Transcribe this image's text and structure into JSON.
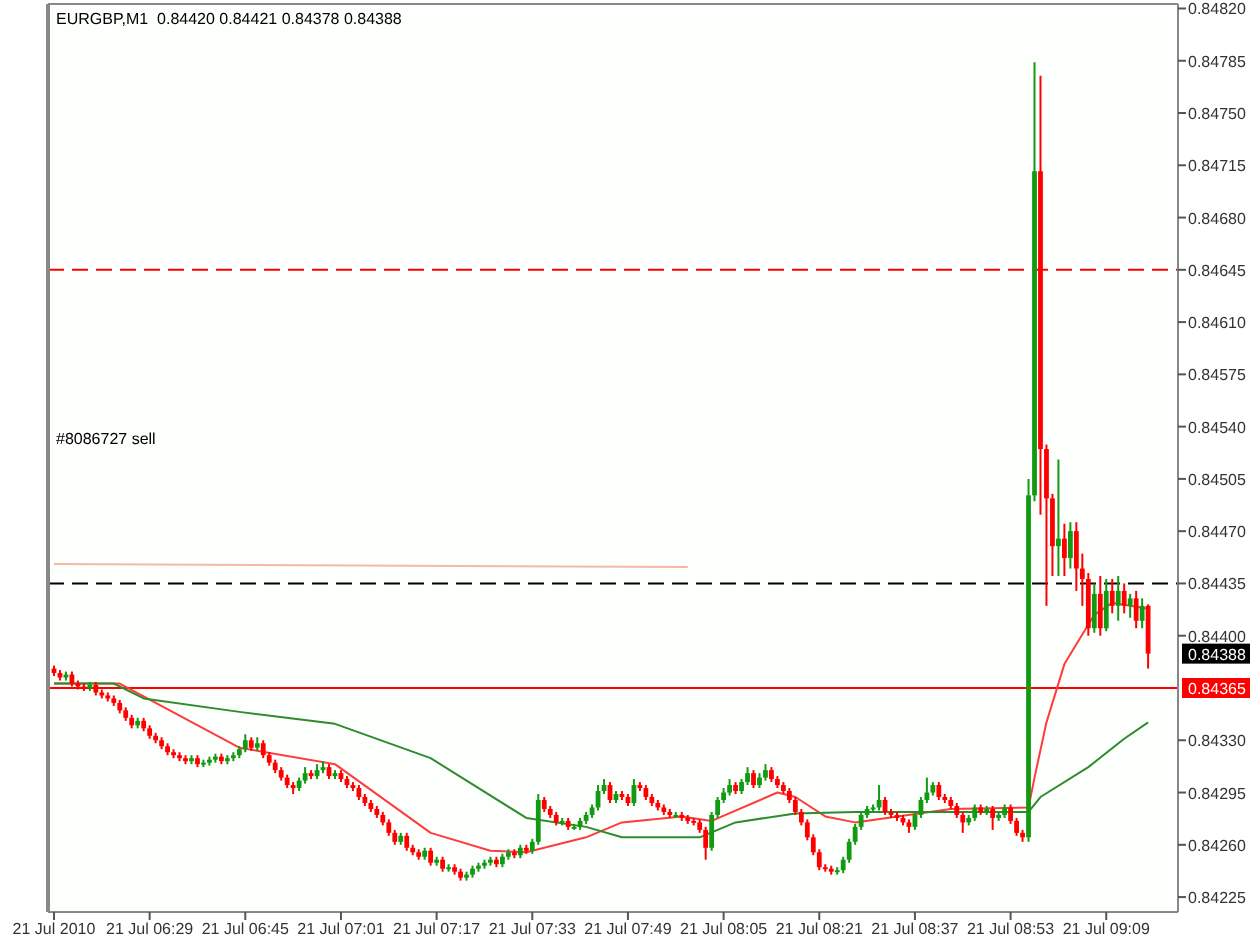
{
  "chart_data": {
    "type": "candlestick",
    "title": "EURGBP,M1  0.84420 0.84421 0.84378 0.84388",
    "x": [
      "2010-07-21T06:13",
      "2010-07-21T06:14",
      "2010-07-21T06:15",
      "2010-07-21T06:16",
      "2010-07-21T06:17",
      "2010-07-21T06:18",
      "2010-07-21T06:19",
      "2010-07-21T06:20",
      "2010-07-21T06:21",
      "2010-07-21T06:22",
      "2010-07-21T06:23",
      "2010-07-21T06:24",
      "2010-07-21T06:25",
      "2010-07-21T06:26",
      "2010-07-21T06:27",
      "2010-07-21T06:28",
      "2010-07-21T06:29",
      "2010-07-21T06:30",
      "2010-07-21T06:31",
      "2010-07-21T06:32",
      "2010-07-21T06:33",
      "2010-07-21T06:34",
      "2010-07-21T06:35",
      "2010-07-21T06:36",
      "2010-07-21T06:37",
      "2010-07-21T06:38",
      "2010-07-21T06:39",
      "2010-07-21T06:40",
      "2010-07-21T06:41",
      "2010-07-21T06:42",
      "2010-07-21T06:43",
      "2010-07-21T06:44",
      "2010-07-21T06:45",
      "2010-07-21T06:46",
      "2010-07-21T06:47",
      "2010-07-21T06:48",
      "2010-07-21T06:49",
      "2010-07-21T06:50",
      "2010-07-21T06:51",
      "2010-07-21T06:52",
      "2010-07-21T06:53",
      "2010-07-21T06:54",
      "2010-07-21T06:55",
      "2010-07-21T06:56",
      "2010-07-21T06:57",
      "2010-07-21T06:58",
      "2010-07-21T06:59",
      "2010-07-21T07:00",
      "2010-07-21T07:01",
      "2010-07-21T07:02",
      "2010-07-21T07:03",
      "2010-07-21T07:04",
      "2010-07-21T07:05",
      "2010-07-21T07:06",
      "2010-07-21T07:07",
      "2010-07-21T07:08",
      "2010-07-21T07:09",
      "2010-07-21T07:10",
      "2010-07-21T07:11",
      "2010-07-21T07:12",
      "2010-07-21T07:13",
      "2010-07-21T07:14",
      "2010-07-21T07:15",
      "2010-07-21T07:16",
      "2010-07-21T07:17",
      "2010-07-21T07:18",
      "2010-07-21T07:19",
      "2010-07-21T07:20",
      "2010-07-21T07:21",
      "2010-07-21T07:22",
      "2010-07-21T07:23",
      "2010-07-21T07:24",
      "2010-07-21T07:25",
      "2010-07-21T07:26",
      "2010-07-21T07:27",
      "2010-07-21T07:28",
      "2010-07-21T07:29",
      "2010-07-21T07:30",
      "2010-07-21T07:31",
      "2010-07-21T07:32",
      "2010-07-21T07:33",
      "2010-07-21T07:34",
      "2010-07-21T07:35",
      "2010-07-21T07:36",
      "2010-07-21T07:37",
      "2010-07-21T07:38",
      "2010-07-21T07:39",
      "2010-07-21T07:40",
      "2010-07-21T07:41",
      "2010-07-21T07:42",
      "2010-07-21T07:43",
      "2010-07-21T07:44",
      "2010-07-21T07:45",
      "2010-07-21T07:46",
      "2010-07-21T07:47",
      "2010-07-21T07:48",
      "2010-07-21T07:49",
      "2010-07-21T07:50",
      "2010-07-21T07:51",
      "2010-07-21T07:52",
      "2010-07-21T07:53",
      "2010-07-21T07:54",
      "2010-07-21T07:55",
      "2010-07-21T07:56",
      "2010-07-21T07:57",
      "2010-07-21T07:58",
      "2010-07-21T07:59",
      "2010-07-21T08:00",
      "2010-07-21T08:01",
      "2010-07-21T08:02",
      "2010-07-21T08:03",
      "2010-07-21T08:04",
      "2010-07-21T08:05",
      "2010-07-21T08:06",
      "2010-07-21T08:07",
      "2010-07-21T08:08",
      "2010-07-21T08:09",
      "2010-07-21T08:10",
      "2010-07-21T08:11",
      "2010-07-21T08:12",
      "2010-07-21T08:13",
      "2010-07-21T08:14",
      "2010-07-21T08:15",
      "2010-07-21T08:16",
      "2010-07-21T08:17",
      "2010-07-21T08:18",
      "2010-07-21T08:19",
      "2010-07-21T08:20",
      "2010-07-21T08:21",
      "2010-07-21T08:22",
      "2010-07-21T08:23",
      "2010-07-21T08:24",
      "2010-07-21T08:25",
      "2010-07-21T08:26",
      "2010-07-21T08:27",
      "2010-07-21T08:28",
      "2010-07-21T08:29",
      "2010-07-21T08:30",
      "2010-07-21T08:31",
      "2010-07-21T08:32",
      "2010-07-21T08:33",
      "2010-07-21T08:34",
      "2010-07-21T08:35",
      "2010-07-21T08:36",
      "2010-07-21T08:37",
      "2010-07-21T08:38",
      "2010-07-21T08:39",
      "2010-07-21T08:40",
      "2010-07-21T08:41",
      "2010-07-21T08:42",
      "2010-07-21T08:43",
      "2010-07-21T08:44",
      "2010-07-21T08:45",
      "2010-07-21T08:46",
      "2010-07-21T08:47",
      "2010-07-21T08:48",
      "2010-07-21T08:49",
      "2010-07-21T08:50",
      "2010-07-21T08:51",
      "2010-07-21T08:52",
      "2010-07-21T08:53",
      "2010-07-21T08:54",
      "2010-07-21T08:55",
      "2010-07-21T08:56",
      "2010-07-21T08:57",
      "2010-07-21T08:58",
      "2010-07-21T08:59",
      "2010-07-21T09:00",
      "2010-07-21T09:01",
      "2010-07-21T09:02",
      "2010-07-21T09:03",
      "2010-07-21T09:04",
      "2010-07-21T09:05",
      "2010-07-21T09:06",
      "2010-07-21T09:07",
      "2010-07-21T09:08",
      "2010-07-21T09:09",
      "2010-07-21T09:10",
      "2010-07-21T09:11",
      "2010-07-21T09:12",
      "2010-07-21T09:13",
      "2010-07-21T09:14",
      "2010-07-21T09:15",
      "2010-07-21T09:16"
    ],
    "ohlc": [
      [
        0.84378,
        0.8438,
        0.84373,
        0.84375
      ],
      [
        0.84375,
        0.84377,
        0.8437,
        0.84372
      ],
      [
        0.84372,
        0.84376,
        0.8437,
        0.84374
      ],
      [
        0.84374,
        0.84376,
        0.84366,
        0.84368
      ],
      [
        0.84368,
        0.8437,
        0.84364,
        0.84366
      ],
      [
        0.84366,
        0.84368,
        0.84363,
        0.84365
      ],
      [
        0.84365,
        0.84369,
        0.84363,
        0.84367
      ],
      [
        0.84367,
        0.84369,
        0.8436,
        0.84362
      ],
      [
        0.84362,
        0.84364,
        0.84358,
        0.8436
      ],
      [
        0.8436,
        0.84362,
        0.84356,
        0.84358
      ],
      [
        0.84358,
        0.8436,
        0.84353,
        0.84355
      ],
      [
        0.84355,
        0.84357,
        0.84348,
        0.8435
      ],
      [
        0.8435,
        0.84352,
        0.84343,
        0.84345
      ],
      [
        0.84345,
        0.84347,
        0.84338,
        0.8434
      ],
      [
        0.8434,
        0.84345,
        0.84338,
        0.84343
      ],
      [
        0.84343,
        0.84345,
        0.84336,
        0.84338
      ],
      [
        0.84338,
        0.8434,
        0.84331,
        0.84333
      ],
      [
        0.84333,
        0.84335,
        0.84328,
        0.8433
      ],
      [
        0.8433,
        0.84332,
        0.84324,
        0.84326
      ],
      [
        0.84326,
        0.84328,
        0.8432,
        0.84322
      ],
      [
        0.84322,
        0.84324,
        0.84318,
        0.8432
      ],
      [
        0.8432,
        0.84322,
        0.84316,
        0.84318
      ],
      [
        0.84318,
        0.8432,
        0.84314,
        0.84316
      ],
      [
        0.84316,
        0.8432,
        0.84314,
        0.84318
      ],
      [
        0.84318,
        0.8432,
        0.84312,
        0.84314
      ],
      [
        0.84314,
        0.84317,
        0.84312,
        0.84315
      ],
      [
        0.84315,
        0.84319,
        0.84313,
        0.84317
      ],
      [
        0.84317,
        0.84321,
        0.84315,
        0.84319
      ],
      [
        0.84319,
        0.84321,
        0.84314,
        0.84316
      ],
      [
        0.84316,
        0.8432,
        0.84314,
        0.84318
      ],
      [
        0.84318,
        0.84322,
        0.84316,
        0.8432
      ],
      [
        0.8432,
        0.84326,
        0.84318,
        0.84324
      ],
      [
        0.84324,
        0.84334,
        0.84322,
        0.8433
      ],
      [
        0.8433,
        0.84332,
        0.84323,
        0.84325
      ],
      [
        0.84325,
        0.84332,
        0.84323,
        0.84328
      ],
      [
        0.84328,
        0.8433,
        0.84318,
        0.8432
      ],
      [
        0.8432,
        0.84322,
        0.84313,
        0.84315
      ],
      [
        0.84315,
        0.84317,
        0.84308,
        0.8431
      ],
      [
        0.8431,
        0.84312,
        0.84303,
        0.84305
      ],
      [
        0.84305,
        0.84307,
        0.84298,
        0.843
      ],
      [
        0.843,
        0.84302,
        0.84294,
        0.84298
      ],
      [
        0.84298,
        0.84305,
        0.84296,
        0.84303
      ],
      [
        0.84303,
        0.84312,
        0.84301,
        0.84308
      ],
      [
        0.84308,
        0.8431,
        0.84304,
        0.84306
      ],
      [
        0.84306,
        0.84314,
        0.84304,
        0.8431
      ],
      [
        0.8431,
        0.84316,
        0.84308,
        0.84312
      ],
      [
        0.84312,
        0.84314,
        0.84304,
        0.84306
      ],
      [
        0.84306,
        0.8431,
        0.84304,
        0.84308
      ],
      [
        0.84308,
        0.8431,
        0.84302,
        0.84304
      ],
      [
        0.84304,
        0.84306,
        0.84298,
        0.843
      ],
      [
        0.843,
        0.84302,
        0.84296,
        0.84298
      ],
      [
        0.84298,
        0.843,
        0.8429,
        0.84292
      ],
      [
        0.84292,
        0.84294,
        0.84286,
        0.84288
      ],
      [
        0.84288,
        0.8429,
        0.84282,
        0.84284
      ],
      [
        0.84284,
        0.84286,
        0.84278,
        0.8428
      ],
      [
        0.8428,
        0.84282,
        0.84273,
        0.84275
      ],
      [
        0.84275,
        0.84277,
        0.84266,
        0.84268
      ],
      [
        0.84268,
        0.8427,
        0.8426,
        0.84262
      ],
      [
        0.84262,
        0.84268,
        0.8426,
        0.84266
      ],
      [
        0.84266,
        0.84268,
        0.84256,
        0.84258
      ],
      [
        0.84258,
        0.8426,
        0.84253,
        0.84255
      ],
      [
        0.84255,
        0.84257,
        0.8425,
        0.84252
      ],
      [
        0.84252,
        0.84258,
        0.8425,
        0.84256
      ],
      [
        0.84256,
        0.84258,
        0.84246,
        0.84248
      ],
      [
        0.84248,
        0.84252,
        0.84246,
        0.8425
      ],
      [
        0.8425,
        0.84252,
        0.84242,
        0.84244
      ],
      [
        0.84244,
        0.84247,
        0.84242,
        0.84245
      ],
      [
        0.84245,
        0.84247,
        0.8424,
        0.84242
      ],
      [
        0.84242,
        0.84244,
        0.84236,
        0.84238
      ],
      [
        0.84238,
        0.84242,
        0.84236,
        0.8424
      ],
      [
        0.8424,
        0.84246,
        0.84238,
        0.84244
      ],
      [
        0.84244,
        0.84248,
        0.84242,
        0.84246
      ],
      [
        0.84246,
        0.8425,
        0.84244,
        0.84248
      ],
      [
        0.84248,
        0.84252,
        0.84246,
        0.8425
      ],
      [
        0.8425,
        0.84252,
        0.84245,
        0.84247
      ],
      [
        0.84247,
        0.84254,
        0.84245,
        0.84252
      ],
      [
        0.84252,
        0.84257,
        0.8425,
        0.84255
      ],
      [
        0.84255,
        0.84257,
        0.84251,
        0.84253
      ],
      [
        0.84253,
        0.8426,
        0.84251,
        0.84258
      ],
      [
        0.84258,
        0.8426,
        0.84254,
        0.84256
      ],
      [
        0.84256,
        0.84264,
        0.84254,
        0.84262
      ],
      [
        0.84262,
        0.84294,
        0.8426,
        0.8429
      ],
      [
        0.8429,
        0.84292,
        0.84282,
        0.84284
      ],
      [
        0.84284,
        0.84286,
        0.84278,
        0.8428
      ],
      [
        0.8428,
        0.84282,
        0.84273,
        0.84275
      ],
      [
        0.84275,
        0.84278,
        0.84273,
        0.84276
      ],
      [
        0.84276,
        0.84278,
        0.8427,
        0.84272
      ],
      [
        0.84272,
        0.84274,
        0.8427,
        0.84272
      ],
      [
        0.84272,
        0.84278,
        0.8427,
        0.84276
      ],
      [
        0.84276,
        0.84282,
        0.84274,
        0.8428
      ],
      [
        0.8428,
        0.84287,
        0.84278,
        0.84285
      ],
      [
        0.84285,
        0.843,
        0.84283,
        0.84296
      ],
      [
        0.84296,
        0.84304,
        0.84294,
        0.843
      ],
      [
        0.843,
        0.84302,
        0.84288,
        0.8429
      ],
      [
        0.8429,
        0.84296,
        0.84288,
        0.84294
      ],
      [
        0.84294,
        0.84296,
        0.8429,
        0.84292
      ],
      [
        0.84292,
        0.84294,
        0.84286,
        0.84288
      ],
      [
        0.84288,
        0.84304,
        0.84286,
        0.843
      ],
      [
        0.843,
        0.84302,
        0.84296,
        0.84298
      ],
      [
        0.84298,
        0.843,
        0.8429,
        0.84292
      ],
      [
        0.84292,
        0.84294,
        0.84286,
        0.84288
      ],
      [
        0.84288,
        0.8429,
        0.84283,
        0.84285
      ],
      [
        0.84285,
        0.84287,
        0.8428,
        0.84282
      ],
      [
        0.84282,
        0.84284,
        0.84278,
        0.8428
      ],
      [
        0.8428,
        0.84282,
        0.84278,
        0.8428
      ],
      [
        0.8428,
        0.84282,
        0.84276,
        0.84278
      ],
      [
        0.84278,
        0.8428,
        0.84274,
        0.84276
      ],
      [
        0.84276,
        0.84278,
        0.84273,
        0.84275
      ],
      [
        0.84275,
        0.84277,
        0.84268,
        0.8427
      ],
      [
        0.8427,
        0.84272,
        0.8425,
        0.84258
      ],
      [
        0.84258,
        0.84282,
        0.84256,
        0.8428
      ],
      [
        0.8428,
        0.84292,
        0.84278,
        0.8429
      ],
      [
        0.8429,
        0.84298,
        0.84288,
        0.84295
      ],
      [
        0.84295,
        0.84304,
        0.84293,
        0.843
      ],
      [
        0.843,
        0.84302,
        0.84294,
        0.84296
      ],
      [
        0.84296,
        0.84304,
        0.84294,
        0.84302
      ],
      [
        0.84302,
        0.84312,
        0.843,
        0.84308
      ],
      [
        0.84308,
        0.8431,
        0.84298,
        0.843
      ],
      [
        0.843,
        0.84308,
        0.84298,
        0.84305
      ],
      [
        0.84305,
        0.84314,
        0.84303,
        0.8431
      ],
      [
        0.8431,
        0.84312,
        0.84302,
        0.84304
      ],
      [
        0.84304,
        0.84306,
        0.84298,
        0.843
      ],
      [
        0.843,
        0.84302,
        0.84294,
        0.84296
      ],
      [
        0.84296,
        0.84298,
        0.84288,
        0.8429
      ],
      [
        0.8429,
        0.84292,
        0.8428,
        0.84282
      ],
      [
        0.84282,
        0.84284,
        0.84273,
        0.84275
      ],
      [
        0.84275,
        0.84277,
        0.84263,
        0.84265
      ],
      [
        0.84265,
        0.84267,
        0.84253,
        0.84255
      ],
      [
        0.84255,
        0.84257,
        0.84243,
        0.84245
      ],
      [
        0.84245,
        0.84247,
        0.84242,
        0.84244
      ],
      [
        0.84244,
        0.84246,
        0.8424,
        0.84242
      ],
      [
        0.84242,
        0.84245,
        0.8424,
        0.84243
      ],
      [
        0.84243,
        0.84252,
        0.84241,
        0.8425
      ],
      [
        0.8425,
        0.84264,
        0.84248,
        0.84262
      ],
      [
        0.84262,
        0.84274,
        0.8426,
        0.84272
      ],
      [
        0.84272,
        0.84282,
        0.8427,
        0.8428
      ],
      [
        0.8428,
        0.84286,
        0.84278,
        0.84284
      ],
      [
        0.84284,
        0.84287,
        0.84282,
        0.84285
      ],
      [
        0.84285,
        0.843,
        0.84283,
        0.8429
      ],
      [
        0.8429,
        0.84292,
        0.8428,
        0.84282
      ],
      [
        0.84282,
        0.84284,
        0.84278,
        0.8428
      ],
      [
        0.8428,
        0.84282,
        0.84276,
        0.84278
      ],
      [
        0.84278,
        0.8428,
        0.84273,
        0.84275
      ],
      [
        0.84275,
        0.84277,
        0.84268,
        0.84272
      ],
      [
        0.84272,
        0.84282,
        0.8427,
        0.8428
      ],
      [
        0.8428,
        0.84292,
        0.84278,
        0.8429
      ],
      [
        0.8429,
        0.84305,
        0.84288,
        0.84295
      ],
      [
        0.84295,
        0.84302,
        0.84293,
        0.843
      ],
      [
        0.843,
        0.84302,
        0.8429,
        0.84292
      ],
      [
        0.84292,
        0.84294,
        0.84288,
        0.8429
      ],
      [
        0.8429,
        0.84292,
        0.84284,
        0.84286
      ],
      [
        0.84286,
        0.84288,
        0.84278,
        0.8428
      ],
      [
        0.8428,
        0.84282,
        0.84268,
        0.84275
      ],
      [
        0.84275,
        0.8428,
        0.84273,
        0.84278
      ],
      [
        0.84278,
        0.84287,
        0.84276,
        0.84285
      ],
      [
        0.84285,
        0.84287,
        0.8428,
        0.84282
      ],
      [
        0.84282,
        0.84286,
        0.8428,
        0.84284
      ],
      [
        0.84284,
        0.84286,
        0.8427,
        0.84278
      ],
      [
        0.84278,
        0.84282,
        0.84276,
        0.8428
      ],
      [
        0.8428,
        0.84287,
        0.84278,
        0.84285
      ],
      [
        0.84285,
        0.84287,
        0.84274,
        0.84276
      ],
      [
        0.84276,
        0.84278,
        0.84266,
        0.84268
      ],
      [
        0.84268,
        0.8427,
        0.84262,
        0.84265
      ],
      [
        0.84265,
        0.84505,
        0.84262,
        0.84494
      ],
      [
        0.84494,
        0.84784,
        0.8449,
        0.84711
      ],
      [
        0.84711,
        0.84775,
        0.84481,
        0.84525
      ],
      [
        0.84525,
        0.84528,
        0.8442,
        0.84492
      ],
      [
        0.84492,
        0.84495,
        0.8444,
        0.8446
      ],
      [
        0.8446,
        0.84518,
        0.8444,
        0.84465
      ],
      [
        0.84465,
        0.84475,
        0.8444,
        0.84452
      ],
      [
        0.84452,
        0.84476,
        0.84445,
        0.8447
      ],
      [
        0.8447,
        0.84476,
        0.8443,
        0.84445
      ],
      [
        0.84445,
        0.84455,
        0.8442,
        0.84438
      ],
      [
        0.84438,
        0.84442,
        0.844,
        0.84405
      ],
      [
        0.84405,
        0.84435,
        0.84402,
        0.84428
      ],
      [
        0.84428,
        0.8444,
        0.844,
        0.84405
      ],
      [
        0.84405,
        0.84438,
        0.84403,
        0.8443
      ],
      [
        0.8443,
        0.84438,
        0.84415,
        0.8442
      ],
      [
        0.8442,
        0.8444,
        0.8441,
        0.8443
      ],
      [
        0.8443,
        0.84435,
        0.84415,
        0.8442
      ],
      [
        0.8442,
        0.84428,
        0.84412,
        0.84425
      ],
      [
        0.84425,
        0.8443,
        0.84405,
        0.8441
      ],
      [
        0.8441,
        0.84425,
        0.84405,
        0.8442
      ],
      [
        0.8442,
        0.84421,
        0.84378,
        0.84388
      ]
    ],
    "series": [
      {
        "type": "line",
        "color": "#ff3b3b",
        "x": [
          "2010-07-21T06:13",
          "2010-07-21T06:24",
          "2010-07-21T06:44",
          "2010-07-21T07:00",
          "2010-07-21T07:16",
          "2010-07-21T07:26",
          "2010-07-21T07:32",
          "2010-07-21T07:42",
          "2010-07-21T07:48",
          "2010-07-21T07:58",
          "2010-07-21T08:03",
          "2010-07-21T08:14",
          "2010-07-21T08:17",
          "2010-07-21T08:22",
          "2010-07-21T08:27",
          "2010-07-21T08:43",
          "2010-07-21T08:56",
          "2010-07-21T08:57",
          "2010-07-21T08:59",
          "2010-07-21T09:02",
          "2010-07-21T09:07",
          "2010-07-21T09:10",
          "2010-07-21T09:16"
        ],
        "values": [
          0.84368,
          0.84368,
          0.84325,
          0.84314,
          0.84268,
          0.84256,
          0.84255,
          0.84265,
          0.84275,
          0.84279,
          0.84276,
          0.84295,
          0.84292,
          0.84279,
          0.84275,
          0.84284,
          0.84285,
          0.84305,
          0.84342,
          0.84381,
          0.84414,
          0.84422,
          0.84418
        ]
      },
      {
        "type": "line",
        "color": "#2e8b2e",
        "x": [
          "2010-07-21T06:13",
          "2010-07-21T06:23",
          "2010-07-21T06:28",
          "2010-07-21T06:44",
          "2010-07-21T07:00",
          "2010-07-21T07:16",
          "2010-07-21T07:32",
          "2010-07-21T07:42",
          "2010-07-21T07:48",
          "2010-07-21T08:01",
          "2010-07-21T08:07",
          "2010-07-21T08:17",
          "2010-07-21T08:27",
          "2010-07-21T08:56",
          "2010-07-21T08:58",
          "2010-07-21T09:06",
          "2010-07-21T09:12",
          "2010-07-21T09:16"
        ],
        "values": [
          0.84368,
          0.84368,
          0.84358,
          0.84349,
          0.84341,
          0.84318,
          0.84278,
          0.84272,
          0.84265,
          0.84265,
          0.84275,
          0.84281,
          0.84282,
          0.84282,
          0.84292,
          0.84312,
          0.84331,
          0.84342
        ]
      },
      {
        "type": "line",
        "color": "#f6b8a2",
        "x": [
          "2010-07-21T06:13",
          "2010-07-21T07:59"
        ],
        "values": [
          0.84448,
          0.84446
        ]
      }
    ],
    "xlim": [
      "2010-07-21T06:12",
      "2010-07-21T09:21"
    ],
    "xticks": [
      {
        "value": "2010-07-21T06:13",
        "label": "21 Jul 2010"
      },
      {
        "value": "2010-07-21T06:29",
        "label": "21 Jul 06:29"
      },
      {
        "value": "2010-07-21T06:45",
        "label": "21 Jul 06:45"
      },
      {
        "value": "2010-07-21T07:01",
        "label": "21 Jul 07:01"
      },
      {
        "value": "2010-07-21T07:17",
        "label": "21 Jul 07:17"
      },
      {
        "value": "2010-07-21T07:33",
        "label": "21 Jul 07:33"
      },
      {
        "value": "2010-07-21T07:49",
        "label": "21 Jul 07:49"
      },
      {
        "value": "2010-07-21T08:05",
        "label": "21 Jul 08:05"
      },
      {
        "value": "2010-07-21T08:21",
        "label": "21 Jul 08:21"
      },
      {
        "value": "2010-07-21T08:37",
        "label": "21 Jul 08:37"
      },
      {
        "value": "2010-07-21T08:53",
        "label": "21 Jul 08:53"
      },
      {
        "value": "2010-07-21T09:09",
        "label": "21 Jul 09:09"
      }
    ],
    "ylim": [
      0.84215,
      0.84823
    ],
    "yticks": [
      0.84225,
      {
        "value": 0.8426,
        "label": "0.84260"
      },
      0.84295,
      {
        "value": 0.8433,
        "label": "0.84330"
      },
      {
        "value": 0.844,
        "label": "0.84400"
      },
      0.84435,
      {
        "value": 0.8447,
        "label": "0.84470"
      },
      0.84505,
      {
        "value": 0.8454,
        "label": "0.84540"
      },
      0.84575,
      {
        "value": 0.8461,
        "label": "0.84610"
      },
      0.84645,
      {
        "value": 0.8468,
        "label": "0.84680"
      },
      0.84715,
      {
        "value": 0.8475,
        "label": "0.84750"
      },
      0.84785,
      {
        "value": 0.8482,
        "label": "0.84820"
      }
    ],
    "ref_lines": [
      {
        "axis": "y",
        "value": 0.84645,
        "color": "#ff0000",
        "line_style": "dashed"
      },
      {
        "axis": "y",
        "value": 0.84435,
        "color": "#000000",
        "line_style": "dashed"
      },
      {
        "axis": "y",
        "value": 0.84365,
        "label": "0.84365",
        "color": "#ff0000"
      }
    ],
    "annotations": [
      "#8086727 sell",
      "0.84388"
    ],
    "grid": false
  }
}
